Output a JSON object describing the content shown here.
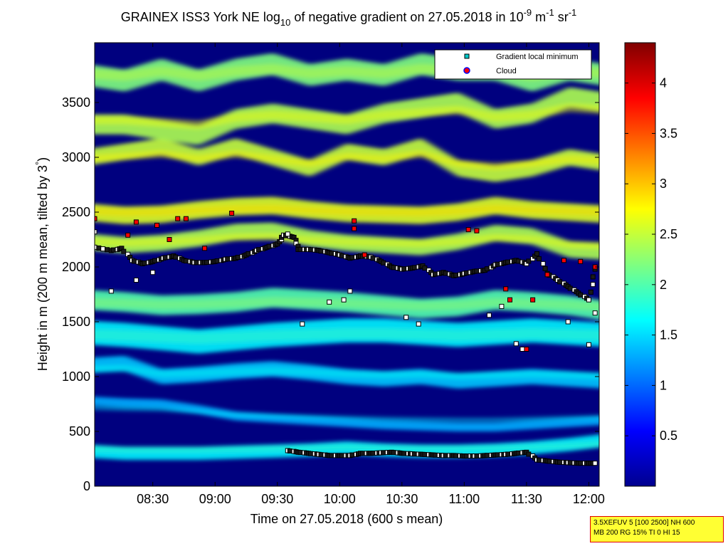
{
  "title": {
    "prefix": "GRAINEX ISS3 York NE log",
    "sub": "10",
    "middle": " of negative gradient on 27.05.2018 in 10",
    "exp1": "-9",
    "mid2": " m",
    "exp2": "-1",
    "mid3": " sr",
    "exp3": "-1"
  },
  "ylabel_prefix": "Height in m (200 m mean, tilted by 3",
  "ylabel_deg": "°",
  "ylabel_suffix": ")",
  "xlabel": "Time on 27.05.2018 (600 s mean)",
  "legend": {
    "items": [
      "Gradient local minimum",
      "Cloud"
    ]
  },
  "annotation": {
    "line1": "3.5XEFUV 5 [100 2500] NH 600",
    "line2": "MB 200 RG 15% TI 0 HI 15"
  },
  "colors": {
    "local_min_marker": "#00c8c8",
    "cloud_marker": "#ff0000",
    "legend_cloud_outline": "#0000ff",
    "white_marker": "#ffffff",
    "background_field": "#00007f"
  },
  "chart_data": {
    "type": "heatmap",
    "colormap": "jet",
    "x_unit": "time (HH:MM)",
    "x_range": [
      "08:02",
      "12:05"
    ],
    "xticks": [
      "08:30",
      "09:00",
      "09:30",
      "10:00",
      "10:30",
      "11:00",
      "11:30",
      "12:00"
    ],
    "ylim": [
      0,
      4000
    ],
    "yticks": [
      0,
      500,
      1000,
      1500,
      2000,
      2500,
      3000,
      3500
    ],
    "colorbar_range": [
      0,
      4.4
    ],
    "colorbar_ticks": [
      0.5,
      1,
      1.5,
      2,
      2.5,
      3,
      3.5,
      4
    ],
    "bands": [
      {
        "y": [
          2230,
          2200,
          2220,
          2260,
          2320,
          2330,
          2260,
          2220,
          2200,
          2180,
          2230,
          2310,
          2280,
          2160,
          2140
        ],
        "value": 2.4,
        "thickness": 150
      },
      {
        "y": [
          2500,
          2470,
          2480,
          2520,
          2550,
          2560,
          2520,
          2490,
          2480,
          2470,
          2500,
          2560,
          2520,
          2500,
          2480
        ],
        "value": 2.6,
        "thickness": 160
      },
      {
        "y": [
          1700,
          1680,
          1650,
          1660,
          1680,
          1720,
          1700,
          1680,
          1650,
          1620,
          1640,
          1700,
          1680,
          1650,
          1600
        ],
        "value": 2.0,
        "thickness": 180
      },
      {
        "y": [
          1400,
          1380,
          1350,
          1320,
          1350,
          1380,
          1400,
          1420,
          1420,
          1400,
          1380,
          1400,
          1420,
          1400,
          1380
        ],
        "value": 1.6,
        "thickness": 220
      },
      {
        "y": [
          1100,
          1120,
          1000,
          1020,
          1050,
          1070,
          1040,
          1000,
          980,
          1000,
          960,
          980,
          1000,
          980,
          960
        ],
        "value": 1.4,
        "thickness": 140
      },
      {
        "y": [
          780,
          760,
          750,
          700,
          640,
          620,
          600,
          580,
          560,
          550,
          540,
          540,
          560,
          580,
          600
        ],
        "value": 1.3,
        "thickness": 80
      },
      {
        "y": [
          320,
          300,
          300,
          300,
          310,
          320,
          330,
          350,
          330,
          320,
          320,
          330,
          350,
          380,
          420
        ],
        "value": 1.6,
        "thickness": 120
      },
      {
        "y": [
          3000,
          3050,
          3100,
          3000,
          3100,
          3000,
          2900,
          3050,
          3000,
          3100,
          2900,
          2850,
          2900,
          3000,
          2950
        ],
        "value": 2.5,
        "thickness": 150
      },
      {
        "y": [
          3300,
          3300,
          3250,
          3200,
          3350,
          3400,
          3350,
          3300,
          3400,
          3450,
          3500,
          3350,
          3400,
          3550,
          3500
        ],
        "value": 2.4,
        "thickness": 180
      },
      {
        "y": [
          3750,
          3700,
          3800,
          3700,
          3800,
          3850,
          3750,
          3800,
          3750,
          3850,
          3800,
          3800,
          3700,
          3800,
          3750
        ],
        "value": 2.2,
        "thickness": 200
      }
    ],
    "series": [
      {
        "name": "Gradient local minimum",
        "marker": "square",
        "points_upper": [
          [
            "08:02",
            2180
          ],
          [
            "08:10",
            2150
          ],
          [
            "08:15",
            2170
          ],
          [
            "08:20",
            2060
          ],
          [
            "08:25",
            2030
          ],
          [
            "08:30",
            2050
          ],
          [
            "08:35",
            2080
          ],
          [
            "08:40",
            2100
          ],
          [
            "08:45",
            2060
          ],
          [
            "08:50",
            2040
          ],
          [
            "08:55",
            2040
          ],
          [
            "09:00",
            2050
          ],
          [
            "09:05",
            2070
          ],
          [
            "09:10",
            2080
          ],
          [
            "09:15",
            2110
          ],
          [
            "09:20",
            2150
          ],
          [
            "09:25",
            2180
          ],
          [
            "09:30",
            2210
          ],
          [
            "09:33",
            2290
          ],
          [
            "09:38",
            2270
          ],
          [
            "09:40",
            2160
          ],
          [
            "09:45",
            2160
          ],
          [
            "09:50",
            2150
          ],
          [
            "09:55",
            2130
          ],
          [
            "10:00",
            2110
          ],
          [
            "10:05",
            2080
          ],
          [
            "10:10",
            2100
          ],
          [
            "10:15",
            2090
          ],
          [
            "10:20",
            2050
          ],
          [
            "10:25",
            2000
          ],
          [
            "10:30",
            1980
          ],
          [
            "10:35",
            1990
          ],
          [
            "10:40",
            2010
          ],
          [
            "10:45",
            1930
          ],
          [
            "10:50",
            1950
          ],
          [
            "10:55",
            1920
          ],
          [
            "11:00",
            1940
          ],
          [
            "11:05",
            1960
          ],
          [
            "11:10",
            1970
          ],
          [
            "11:15",
            2020
          ],
          [
            "11:20",
            2040
          ],
          [
            "11:25",
            2060
          ],
          [
            "11:30",
            2030
          ],
          [
            "11:35",
            2120
          ],
          [
            "11:40",
            1940
          ],
          [
            "11:45",
            1880
          ],
          [
            "11:50",
            1820
          ],
          [
            "11:55",
            1760
          ],
          [
            "12:00",
            1700
          ],
          [
            "12:03",
            1980
          ]
        ],
        "points_lower": [
          [
            "09:35",
            325
          ],
          [
            "09:40",
            310
          ],
          [
            "09:45",
            300
          ],
          [
            "09:50",
            290
          ],
          [
            "09:55",
            280
          ],
          [
            "10:00",
            280
          ],
          [
            "10:05",
            280
          ],
          [
            "10:10",
            300
          ],
          [
            "10:15",
            300
          ],
          [
            "10:20",
            305
          ],
          [
            "10:25",
            310
          ],
          [
            "10:30",
            300
          ],
          [
            "10:35",
            295
          ],
          [
            "10:40",
            290
          ],
          [
            "10:45",
            285
          ],
          [
            "10:50",
            280
          ],
          [
            "10:55",
            280
          ],
          [
            "11:00",
            275
          ],
          [
            "11:05",
            275
          ],
          [
            "11:10",
            280
          ],
          [
            "11:15",
            285
          ],
          [
            "11:20",
            290
          ],
          [
            "11:25",
            300
          ],
          [
            "11:30",
            310
          ],
          [
            "11:35",
            240
          ],
          [
            "11:40",
            230
          ],
          [
            "11:45",
            220
          ],
          [
            "11:50",
            215
          ],
          [
            "11:55",
            210
          ],
          [
            "12:00",
            210
          ],
          [
            "12:03",
            210
          ]
        ],
        "points_scattered": [
          [
            "08:02",
            2320
          ],
          [
            "08:10",
            1780
          ],
          [
            "08:22",
            1880
          ],
          [
            "08:30",
            1950
          ],
          [
            "09:35",
            2300
          ],
          [
            "09:42",
            1480
          ],
          [
            "09:55",
            1680
          ],
          [
            "10:02",
            1700
          ],
          [
            "10:05",
            1780
          ],
          [
            "10:32",
            1540
          ],
          [
            "10:38",
            1480
          ],
          [
            "11:12",
            1560
          ],
          [
            "11:18",
            1640
          ],
          [
            "11:25",
            1300
          ],
          [
            "11:28",
            1250
          ],
          [
            "11:50",
            1500
          ],
          [
            "12:00",
            1290
          ],
          [
            "12:03",
            1580
          ]
        ]
      },
      {
        "name": "Cloud",
        "marker": "square",
        "points": [
          [
            "08:02",
            2440
          ],
          [
            "08:18",
            2290
          ],
          [
            "08:22",
            2410
          ],
          [
            "08:32",
            2380
          ],
          [
            "08:38",
            2250
          ],
          [
            "08:42",
            2440
          ],
          [
            "08:46",
            2440
          ],
          [
            "08:55",
            2170
          ],
          [
            "09:08",
            2490
          ],
          [
            "10:07",
            2420
          ],
          [
            "10:07",
            2350
          ],
          [
            "10:12",
            2110
          ],
          [
            "11:02",
            2340
          ],
          [
            "11:06",
            2330
          ],
          [
            "11:20",
            1800
          ],
          [
            "11:22",
            1700
          ],
          [
            "11:30",
            1250
          ],
          [
            "11:33",
            1700
          ],
          [
            "11:40",
            1930
          ],
          [
            "11:48",
            2060
          ],
          [
            "11:56",
            2050
          ],
          [
            "12:03",
            2000
          ]
        ]
      }
    ]
  }
}
